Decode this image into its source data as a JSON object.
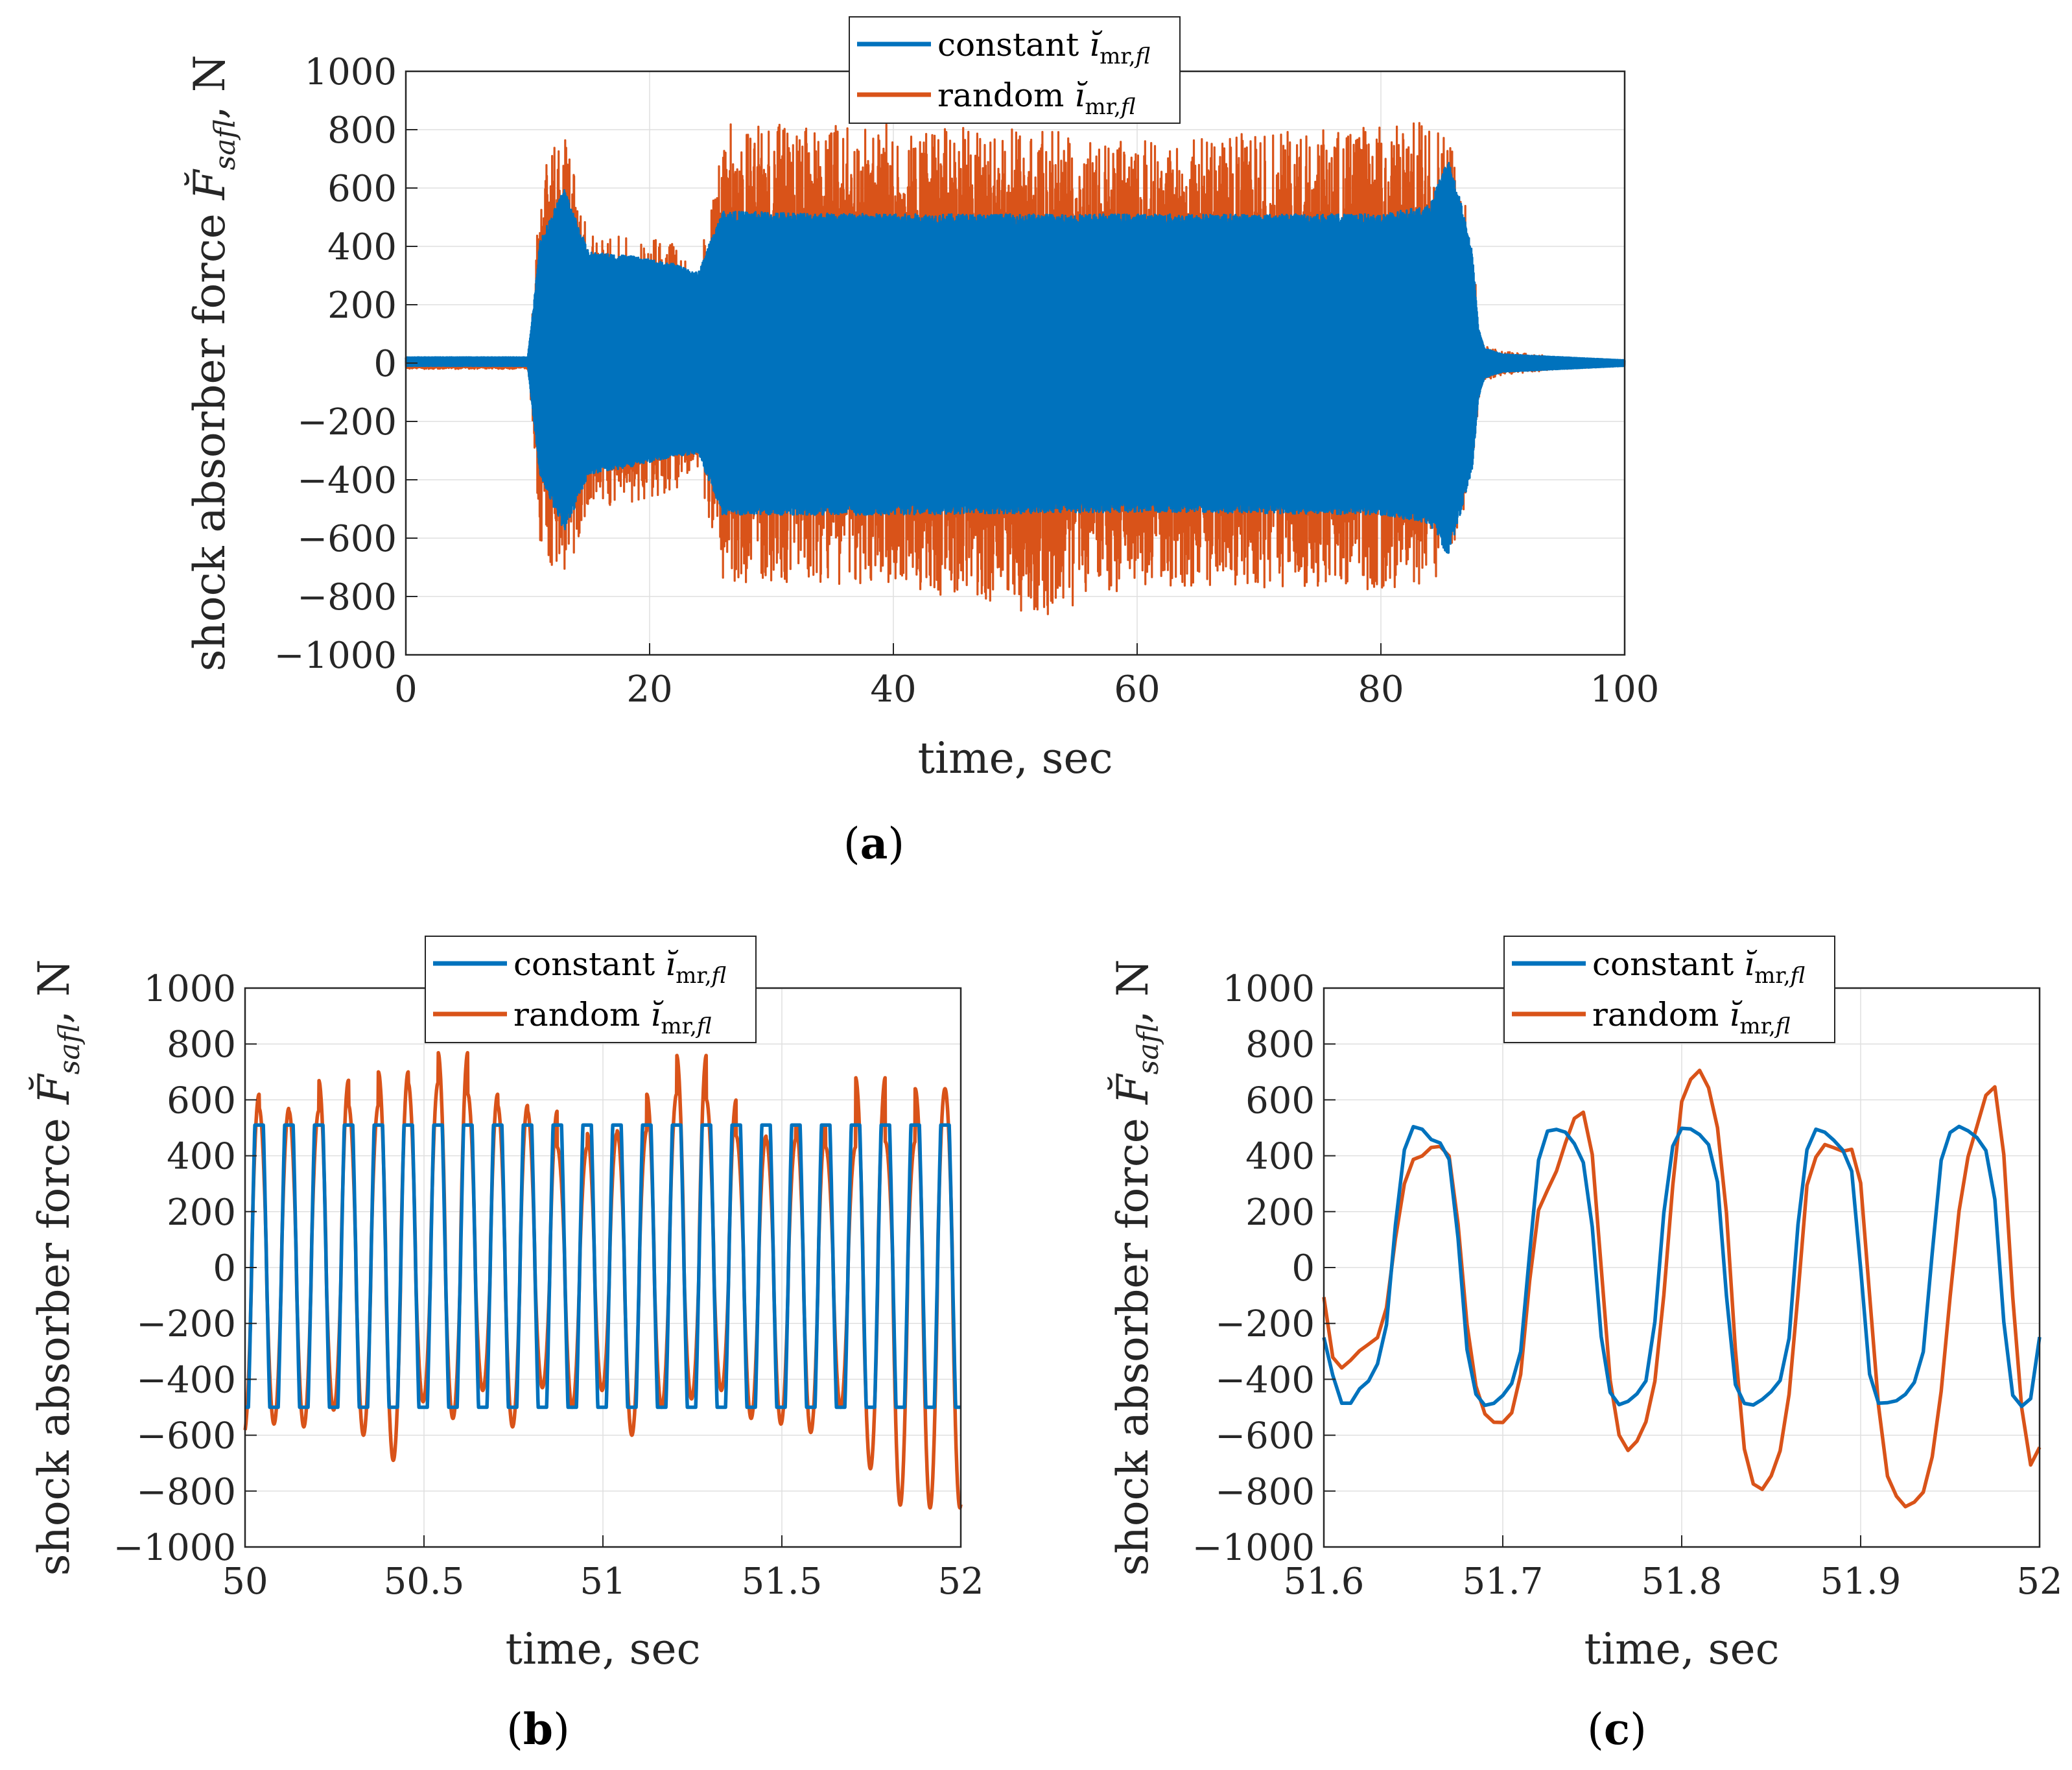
{
  "panels": [
    {
      "label_open": "(",
      "label_letter": "a",
      "label_close": ")"
    },
    {
      "label_open": "(",
      "label_letter": "b",
      "label_close": ")"
    },
    {
      "label_open": "(",
      "label_letter": "c",
      "label_close": ")"
    }
  ],
  "chart_data": [
    {
      "type": "line",
      "panel": "a",
      "title": "",
      "xlabel": "time, sec",
      "ylabel": "shock absorber force F̆safl, N",
      "xlim": [
        0,
        100
      ],
      "ylim": [
        -1000,
        1000
      ],
      "xticks": [
        0,
        20,
        40,
        60,
        80,
        100
      ],
      "yticks": [
        -1000,
        -800,
        -600,
        -400,
        -200,
        0,
        200,
        400,
        600,
        800,
        1000
      ],
      "grid": true,
      "legend_position": "top-center",
      "legend": [
        "constant ĭmr,fl",
        "random ĭmr,fl"
      ],
      "series": [
        {
          "name": "constant ĭmr,fl",
          "color": "#0072BD",
          "envelope_x": [
            0,
            10,
            10.5,
            11,
            13,
            15,
            18,
            22,
            24,
            25,
            26,
            40,
            60,
            80,
            84,
            85.5,
            86.5,
            87.5,
            88,
            88.5,
            90,
            95,
            100
          ],
          "envelope_max": [
            20,
            20,
            200,
            420,
            600,
            380,
            370,
            340,
            310,
            420,
            520,
            510,
            510,
            510,
            540,
            700,
            560,
            380,
            120,
            50,
            30,
            20,
            10
          ],
          "envelope_min": [
            -10,
            -10,
            -200,
            -380,
            -580,
            -380,
            -360,
            -320,
            -310,
            -420,
            -520,
            -520,
            -510,
            -520,
            -550,
            -660,
            -520,
            -360,
            -120,
            -50,
            -30,
            -20,
            -10
          ]
        },
        {
          "name": "random ĭmr,fl",
          "color": "#D95319",
          "envelope_x": [
            0,
            10,
            10.5,
            11,
            13,
            15,
            18,
            22,
            24,
            25,
            26,
            40,
            52,
            60,
            80,
            84,
            85.5,
            86.5,
            87.5,
            88,
            88.5,
            90,
            95,
            100
          ],
          "envelope_max": [
            10,
            10,
            250,
            650,
            830,
            450,
            430,
            420,
            320,
            560,
            820,
            820,
            800,
            760,
            820,
            840,
            810,
            650,
            420,
            140,
            60,
            40,
            20,
            10
          ],
          "envelope_min": [
            -20,
            -20,
            -250,
            -650,
            -780,
            -500,
            -480,
            -460,
            -360,
            -560,
            -750,
            -760,
            -870,
            -760,
            -780,
            -760,
            -700,
            -600,
            -400,
            -140,
            -60,
            -40,
            -20,
            -10
          ]
        }
      ]
    },
    {
      "type": "line",
      "panel": "b",
      "title": "",
      "xlabel": "time, sec",
      "ylabel": "shock absorber force F̆safl, N",
      "xlim": [
        50,
        52
      ],
      "ylim": [
        -1000,
        1000
      ],
      "xticks": [
        50,
        50.5,
        51,
        51.5,
        52
      ],
      "yticks": [
        -1000,
        -800,
        -600,
        -400,
        -200,
        0,
        200,
        400,
        600,
        800,
        1000
      ],
      "grid": true,
      "legend_position": "top-center",
      "legend": [
        "constant ĭmr,fl",
        "random ĭmr,fl"
      ],
      "cycles": 24,
      "series": [
        {
          "name": "constant ĭmr,fl",
          "color": "#0072BD",
          "cycle_peaks": [
            510,
            510,
            510,
            510,
            510,
            510,
            510,
            510,
            510,
            510,
            510,
            510,
            510,
            510,
            510,
            510,
            510,
            510,
            510,
            510,
            510,
            510,
            510,
            510
          ],
          "cycle_troughs": [
            -500,
            -500,
            -500,
            -500,
            -500,
            -500,
            -500,
            -500,
            -500,
            -500,
            -500,
            -500,
            -500,
            -500,
            -500,
            -500,
            -500,
            -500,
            -500,
            -500,
            -500,
            -500,
            -500,
            -500
          ]
        },
        {
          "name": "random ĭmr,fl",
          "color": "#D95319",
          "cycle_peaks": [
            620,
            570,
            560,
            670,
            580,
            700,
            660,
            770,
            620,
            580,
            560,
            430,
            480,
            490,
            620,
            760,
            600,
            470,
            460,
            510,
            430,
            680,
            450,
            640
          ],
          "cycle_troughs": [
            -590,
            -560,
            -570,
            -510,
            -600,
            -690,
            -480,
            -540,
            -440,
            -570,
            -430,
            -500,
            -440,
            -600,
            -500,
            -470,
            -440,
            -540,
            -560,
            -590,
            -500,
            -720,
            -850,
            -860
          ]
        }
      ]
    },
    {
      "type": "line",
      "panel": "c",
      "title": "",
      "xlabel": "time, sec",
      "ylabel": "shock absorber force F̆safl, N",
      "xlim": [
        51.6,
        52
      ],
      "ylim": [
        -1000,
        1000
      ],
      "xticks": [
        51.6,
        51.7,
        51.8,
        51.9,
        52
      ],
      "yticks": [
        -1000,
        -800,
        -600,
        -400,
        -200,
        0,
        200,
        400,
        600,
        800,
        1000
      ],
      "grid": true,
      "legend_position": "top-center",
      "legend": [
        "constant ĭmr,fl",
        "random ĭmr,fl"
      ],
      "series": [
        {
          "name": "constant ĭmr,fl",
          "color": "#0072BD",
          "x": [
            51.6,
            51.605,
            51.61,
            51.615,
            51.62,
            51.625,
            51.63,
            51.635,
            51.64,
            51.645,
            51.65,
            51.655,
            51.66,
            51.665,
            51.67,
            51.675,
            51.68,
            51.685,
            51.69,
            51.695,
            51.7,
            51.705,
            51.71,
            51.715,
            51.72,
            51.725,
            51.73,
            51.735,
            51.74,
            51.745,
            51.75,
            51.755,
            51.76,
            51.765,
            51.77,
            51.775,
            51.78,
            51.785,
            51.79,
            51.795,
            51.8,
            51.805,
            51.81,
            51.815,
            51.82,
            51.825,
            51.83,
            51.835,
            51.84,
            51.845,
            51.85,
            51.855,
            51.86,
            51.865,
            51.87,
            51.875,
            51.88,
            51.885,
            51.89,
            51.895,
            51.9,
            51.905,
            51.91,
            51.915,
            51.92,
            51.925,
            51.93,
            51.935,
            51.94,
            51.945,
            51.95,
            51.955,
            51.96,
            51.965,
            51.97,
            51.975,
            51.98,
            51.985,
            51.99,
            51.995,
            52
          ],
          "y": [
            -250,
            -380,
            -490,
            -480,
            -440,
            -400,
            -340,
            -200,
            150,
            420,
            500,
            490,
            460,
            440,
            380,
            100,
            -300,
            -450,
            -490,
            -480,
            -460,
            -420,
            -300,
            50,
            380,
            490,
            500,
            480,
            450,
            380,
            150,
            -250,
            -450,
            -490,
            -480,
            -450,
            -400,
            -200,
            200,
            440,
            500,
            490,
            470,
            440,
            300,
            -100,
            -420,
            -490,
            -490,
            -470,
            -450,
            -410,
            -250,
            150,
            420,
            500,
            490,
            460,
            420,
            340,
            0,
            -380,
            -480,
            -490,
            -480,
            -450,
            -410,
            -300,
            50,
            380,
            480,
            500,
            490,
            470,
            420,
            250,
            -200,
            -450,
            -490,
            -470,
            -250
          ]
        },
        {
          "name": "random ĭmr,fl",
          "color": "#D95319",
          "x": [
            51.6,
            51.605,
            51.61,
            51.615,
            51.62,
            51.625,
            51.63,
            51.635,
            51.64,
            51.645,
            51.65,
            51.655,
            51.66,
            51.665,
            51.67,
            51.675,
            51.68,
            51.685,
            51.69,
            51.695,
            51.7,
            51.705,
            51.71,
            51.715,
            51.72,
            51.725,
            51.73,
            51.735,
            51.74,
            51.745,
            51.75,
            51.755,
            51.76,
            51.765,
            51.77,
            51.775,
            51.78,
            51.785,
            51.79,
            51.795,
            51.8,
            51.805,
            51.81,
            51.815,
            51.82,
            51.825,
            51.83,
            51.835,
            51.84,
            51.845,
            51.85,
            51.855,
            51.86,
            51.865,
            51.87,
            51.875,
            51.88,
            51.885,
            51.89,
            51.895,
            51.9,
            51.905,
            51.91,
            51.915,
            51.92,
            51.925,
            51.93,
            51.935,
            51.94,
            51.945,
            51.95,
            51.955,
            51.96,
            51.965,
            51.97,
            51.975,
            51.98,
            51.985,
            51.99,
            51.995,
            52
          ],
          "y": [
            -100,
            -320,
            -360,
            -330,
            -300,
            -280,
            -250,
            -150,
            100,
            300,
            380,
            400,
            430,
            440,
            400,
            150,
            -200,
            -420,
            -520,
            -550,
            -560,
            -520,
            -380,
            -50,
            200,
            280,
            350,
            450,
            530,
            560,
            400,
            0,
            -400,
            -600,
            -650,
            -620,
            -550,
            -400,
            -100,
            300,
            600,
            680,
            700,
            650,
            500,
            200,
            -300,
            -650,
            -780,
            -800,
            -750,
            -650,
            -450,
            -100,
            300,
            400,
            440,
            430,
            420,
            420,
            300,
            -100,
            -500,
            -750,
            -820,
            -860,
            -840,
            -800,
            -680,
            -450,
            -100,
            200,
            400,
            500,
            620,
            640,
            400,
            -100,
            -500,
            -700,
            -650
          ]
        }
      ]
    }
  ]
}
